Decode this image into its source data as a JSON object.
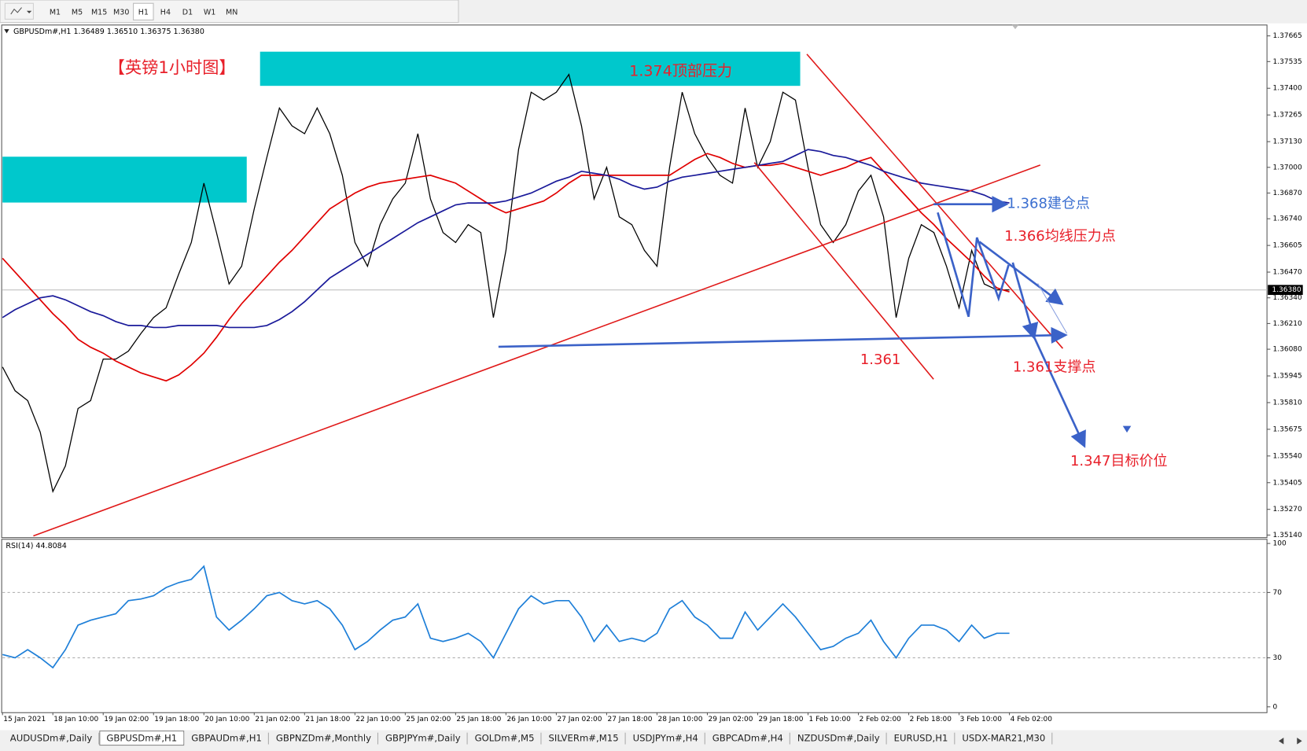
{
  "toolbar": {
    "timeframes": [
      "M1",
      "M5",
      "M15",
      "M30",
      "H1",
      "H4",
      "D1",
      "W1",
      "MN"
    ]
  },
  "chart_data": [
    {
      "type": "line",
      "title": "GBPUSDm#,H1  1.36489 1.36510 1.36375 1.36380",
      "categories": [
        "15 Jan 2021",
        null,
        null,
        null,
        "18 Jan 10:00",
        null,
        null,
        null,
        "19 Jan 02:00",
        null,
        null,
        null,
        "19 Jan 18:00",
        null,
        null,
        null,
        "20 Jan 10:00",
        null,
        null,
        null,
        "21 Jan 02:00",
        null,
        null,
        null,
        "21 Jan 18:00",
        null,
        null,
        null,
        "22 Jan 10:00",
        null,
        null,
        null,
        "25 Jan 02:00",
        null,
        null,
        null,
        "25 Jan 18:00",
        null,
        null,
        null,
        "26 Jan 10:00",
        null,
        null,
        null,
        "27 Jan 02:00",
        null,
        null,
        null,
        "27 Jan 18:00",
        null,
        null,
        null,
        "28 Jan 10:00",
        null,
        null,
        null,
        "29 Jan 02:00",
        null,
        null,
        null,
        "29 Jan 18:00",
        null,
        null,
        null,
        "1 Feb 10:00",
        null,
        null,
        null,
        "2 Feb 02:00",
        null,
        null,
        null,
        "2 Feb 18:00",
        null,
        null,
        null,
        "3 Feb 10:00",
        null,
        null,
        null,
        "4 Feb 02:00"
      ],
      "series": [
        {
          "color": "#000000",
          "values": [
            1.3599,
            1.3587,
            1.3582,
            1.3566,
            1.3536,
            1.3549,
            1.3578,
            1.3582,
            1.3603,
            1.3603,
            1.3607,
            1.3616,
            1.3624,
            1.3629,
            1.3646,
            1.3662,
            1.3692,
            1.3667,
            1.3641,
            1.365,
            1.3679,
            1.3705,
            1.373,
            1.3721,
            1.3717,
            1.373,
            1.3717,
            1.3696,
            1.3662,
            1.365,
            1.3671,
            1.3684,
            1.3692,
            1.3717,
            1.3684,
            1.3667,
            1.3662,
            1.3671,
            1.3667,
            1.3624,
            1.3658,
            1.3709,
            1.3738,
            1.3734,
            1.3738,
            1.3747,
            1.3721,
            1.3684,
            1.37,
            1.3675,
            1.3671,
            1.3658,
            1.365,
            1.37,
            1.3738,
            1.3717,
            1.3705,
            1.3696,
            1.3692,
            1.373,
            1.37,
            1.3713,
            1.3738,
            1.3734,
            1.37,
            1.3671,
            1.3662,
            1.3671,
            1.3688,
            1.3696,
            1.3675,
            1.3624,
            1.3654,
            1.3671,
            1.3667,
            1.365,
            1.3629,
            1.3658,
            1.3641,
            1.3638,
            1.3638
          ]
        },
        {
          "color": "#e00000",
          "values": [
            1.3654,
            1.3647,
            1.364,
            1.3633,
            1.3626,
            1.362,
            1.3613,
            1.3609,
            1.3606,
            1.3602,
            1.3599,
            1.3596,
            1.3594,
            1.3592,
            1.3595,
            1.36,
            1.3606,
            1.3614,
            1.3623,
            1.3631,
            1.3638,
            1.3645,
            1.3652,
            1.3658,
            1.3665,
            1.3672,
            1.3679,
            1.3683,
            1.3687,
            1.369,
            1.3692,
            1.3693,
            1.3694,
            1.3695,
            1.3696,
            1.3694,
            1.3692,
            1.3688,
            1.3684,
            1.368,
            1.3677,
            1.3679,
            1.3681,
            1.3683,
            1.3687,
            1.3692,
            1.3696,
            1.3696,
            1.3696,
            1.3696,
            1.3696,
            1.3696,
            1.3696,
            1.3696,
            1.37,
            1.3704,
            1.3707,
            1.3705,
            1.3702,
            1.37,
            1.3701,
            1.3701,
            1.3702,
            1.37,
            1.3698,
            1.3696,
            1.3698,
            1.37,
            1.3703,
            1.3705,
            1.3698,
            1.3691,
            1.3684,
            1.3677,
            1.3671,
            1.3664,
            1.3658,
            1.3652,
            1.3645,
            1.3639,
            1.3637
          ]
        },
        {
          "color": "#1a1a9a",
          "values": [
            1.3624,
            1.3628,
            1.3631,
            1.3634,
            1.3635,
            1.3633,
            1.363,
            1.3627,
            1.3625,
            1.3622,
            1.362,
            1.362,
            1.3619,
            1.3619,
            1.362,
            1.362,
            1.362,
            1.362,
            1.3619,
            1.3619,
            1.3619,
            1.362,
            1.3623,
            1.3627,
            1.3632,
            1.3638,
            1.3644,
            1.3648,
            1.3652,
            1.3656,
            1.366,
            1.3664,
            1.3668,
            1.3672,
            1.3675,
            1.3678,
            1.3681,
            1.3682,
            1.3682,
            1.3682,
            1.3683,
            1.3685,
            1.3687,
            1.369,
            1.3693,
            1.3695,
            1.3698,
            1.3697,
            1.3696,
            1.3694,
            1.3691,
            1.3689,
            1.369,
            1.3693,
            1.3695,
            1.3696,
            1.3697,
            1.3698,
            1.3699,
            1.37,
            1.3701,
            1.3702,
            1.3703,
            1.3706,
            1.3709,
            1.3708,
            1.3706,
            1.3705,
            1.3703,
            1.3701,
            1.3698,
            1.3696,
            1.3694,
            1.3692,
            1.3691,
            1.369,
            1.3689,
            1.3688,
            1.3686,
            1.3683,
            1.3682
          ]
        }
      ],
      "ylim": [
        1.35127,
        1.3772
      ],
      "yticks": [
        1.37665,
        1.37535,
        {
          "value": 1.374,
          "label": "1.37400"
        },
        1.37265,
        {
          "value": 1.3713,
          "label": "1.37130"
        },
        {
          "value": 1.37,
          "label": "1.37000"
        },
        {
          "value": 1.3687,
          "label": "1.36870"
        },
        {
          "value": 1.3674,
          "label": "1.36740"
        },
        1.36605,
        {
          "value": 1.3647,
          "label": "1.36470"
        },
        {
          "value": 1.3634,
          "label": "1.36340"
        },
        {
          "value": 1.3621,
          "label": "1.36210"
        },
        {
          "value": 1.3608,
          "label": "1.36080"
        },
        1.35945,
        {
          "value": 1.3581,
          "label": "1.35810"
        },
        1.35675,
        {
          "value": 1.3554,
          "label": "1.35540"
        },
        1.35405,
        {
          "value": 1.3527,
          "label": "1.35270"
        },
        {
          "value": 1.3514,
          "label": "1.35140"
        }
      ],
      "last_price": {
        "value": 1.3638,
        "label": "1.36380"
      }
    },
    {
      "type": "line",
      "title": "RSI(14) 44.8084",
      "series": [
        {
          "color": "#1e7fd8",
          "values": [
            32,
            30,
            35,
            30,
            24,
            35,
            50,
            53,
            55,
            57,
            65,
            66,
            68,
            73,
            76,
            78,
            86,
            55,
            47,
            53,
            60,
            68,
            70,
            65,
            63,
            65,
            60,
            50,
            35,
            40,
            47,
            53,
            55,
            63,
            42,
            40,
            42,
            45,
            40,
            30,
            45,
            60,
            68,
            63,
            65,
            65,
            55,
            40,
            50,
            40,
            42,
            40,
            45,
            60,
            65,
            55,
            50,
            42,
            42,
            58,
            47,
            55,
            63,
            55,
            45,
            35,
            37,
            42,
            45,
            53,
            40,
            30,
            42,
            50,
            50,
            47,
            40,
            50,
            42,
            45,
            45
          ]
        }
      ],
      "ylim": [
        0,
        100
      ],
      "yticks": [
        0,
        30,
        70,
        100
      ]
    }
  ],
  "annotations": [
    {
      "text": "【英镑1小时图】",
      "color": "#e8202a"
    },
    {
      "text": "1.374顶部压力",
      "color": "#e8202a"
    },
    {
      "text": "1.368建仓点",
      "color": "#3b6fd0"
    },
    {
      "text": "1.366均线压力点",
      "color": "#e8202a"
    },
    {
      "text": "1.361",
      "color": "#e8202a"
    },
    {
      "text": "1.361支撑点",
      "color": "#e8202a"
    },
    {
      "text": "1.347目标价位",
      "color": "#e8202a"
    }
  ],
  "tabs": [
    "AUDUSDm#,Daily",
    "GBPUSDm#,H1",
    "GBPAUDm#,H1",
    "GBPNZDm#,Monthly",
    "GBPJPYm#,Daily",
    "GOLDm#,M5",
    "SILVERm#,M15",
    "USDJPYm#,H4",
    "GBPCADm#,H4",
    "NZDUSDm#,Daily",
    "EURUSD,H1",
    "USDX-MAR21,M30"
  ]
}
